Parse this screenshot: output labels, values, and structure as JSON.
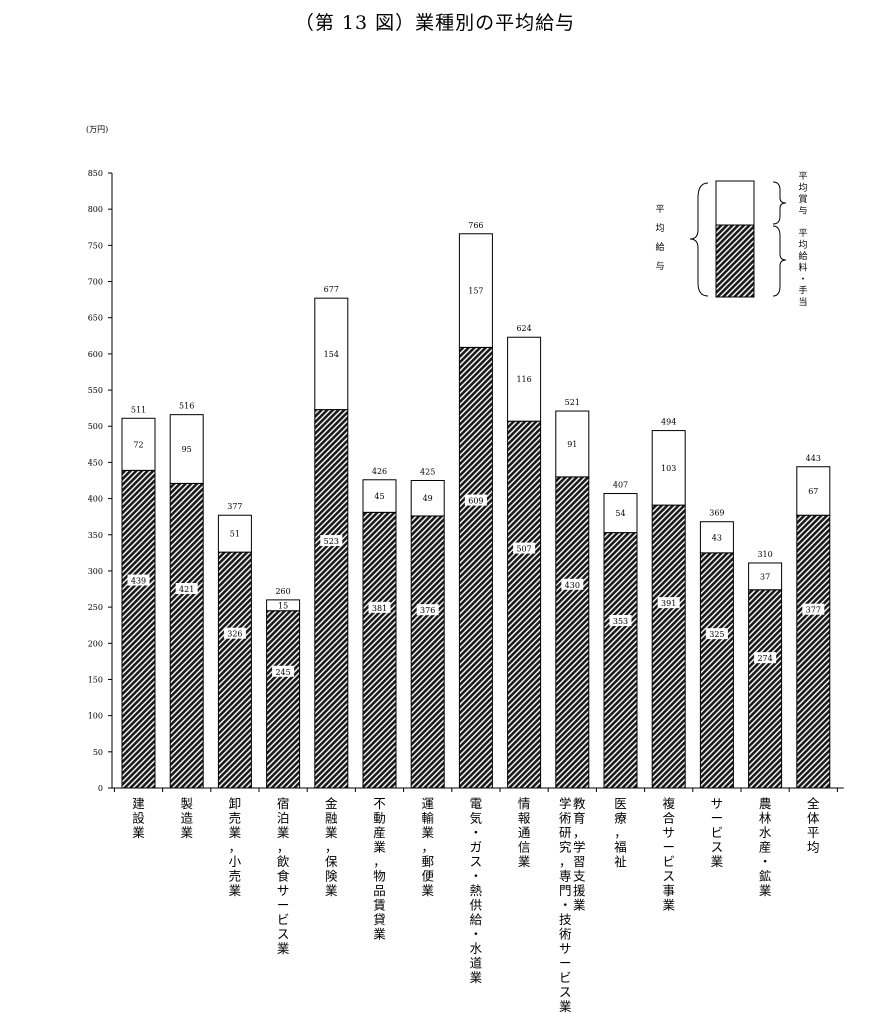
{
  "title": "（第 13 図）業種別の平均給与",
  "chart_data": {
    "type": "bar",
    "stacked": true,
    "unit_label": "(万円)",
    "ylim": [
      0,
      850
    ],
    "yticks": [
      0,
      50,
      100,
      150,
      200,
      250,
      300,
      350,
      400,
      450,
      500,
      550,
      600,
      650,
      700,
      750,
      800,
      850
    ],
    "categories": [
      [
        "建設業"
      ],
      [
        "製造業"
      ],
      [
        "卸売業，小売業"
      ],
      [
        "宿泊業，飲食サービス業"
      ],
      [
        "金融業，保険業"
      ],
      [
        "不動産業，物品賃貸業"
      ],
      [
        "運輸業，郵便業"
      ],
      [
        "電気・ガス・熱供給・水道業"
      ],
      [
        "情報通信業"
      ],
      [
        "学術研究，専門・技術サービス業",
        "教育，学習支援業"
      ],
      [
        "医療，福祉"
      ],
      [
        "複合サービス事業"
      ],
      [
        "サービス業"
      ],
      [
        "農林水産・鉱業"
      ],
      [
        "全体平均"
      ]
    ],
    "series": [
      {
        "name": "平均給料・手当",
        "values": [
          439,
          421,
          326,
          245,
          523,
          381,
          376,
          609,
          507,
          430,
          353,
          391,
          325,
          274,
          377
        ],
        "pattern": "hatched",
        "color": "#1a1a1a"
      },
      {
        "name": "平均賞与",
        "values": [
          72,
          95,
          51,
          15,
          154,
          45,
          49,
          157,
          116,
          91,
          54,
          103,
          43,
          37,
          67
        ],
        "pattern": "solid",
        "color": "#ffffff"
      }
    ],
    "totals": [
      511,
      516,
      377,
      260,
      677,
      426,
      425,
      766,
      624,
      521,
      407,
      494,
      369,
      310,
      443
    ],
    "legend": {
      "group_label": "平均給与",
      "items": [
        "平均賞与",
        "平均給料・手当"
      ],
      "placement": "top-right"
    },
    "grid": false
  }
}
